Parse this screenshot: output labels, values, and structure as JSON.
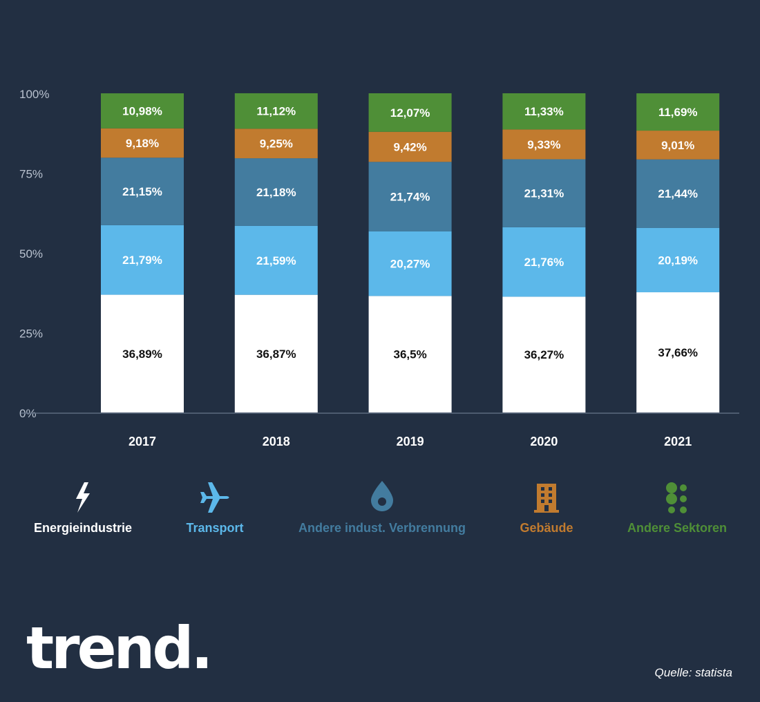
{
  "chart_data": {
    "type": "bar",
    "stacked": true,
    "categories": [
      "2017",
      "2018",
      "2019",
      "2020",
      "2021"
    ],
    "ylim": [
      0,
      100
    ],
    "yticks": [
      "0%",
      "25%",
      "50%",
      "75%",
      "100%"
    ],
    "ytick_values": [
      0,
      25,
      50,
      75,
      100
    ],
    "series": [
      {
        "name": "Energieindustrie",
        "color": "#ffffff",
        "label_color": "#111111",
        "values": [
          36.89,
          36.87,
          36.5,
          36.27,
          37.66
        ],
        "labels": [
          "36,89%",
          "36,87%",
          "36,5%",
          "36,27%",
          "37,66%"
        ]
      },
      {
        "name": "Transport",
        "color": "#5cb8ea",
        "label_color": "#ffffff",
        "values": [
          21.79,
          21.59,
          20.27,
          21.76,
          20.19
        ],
        "labels": [
          "21,79%",
          "21,59%",
          "20,27%",
          "21,76%",
          "20,19%"
        ]
      },
      {
        "name": "Andere indust. Verbrennung",
        "color": "#437c9f",
        "label_color": "#ffffff",
        "values": [
          21.15,
          21.18,
          21.74,
          21.31,
          21.44
        ],
        "labels": [
          "21,15%",
          "21,18%",
          "21,74%",
          "21,31%",
          "21,44%"
        ]
      },
      {
        "name": "Gebäude",
        "color": "#c17b2f",
        "label_color": "#ffffff",
        "values": [
          9.18,
          9.25,
          9.42,
          9.33,
          9.01
        ],
        "labels": [
          "9,18%",
          "9,25%",
          "9,42%",
          "9,33%",
          "9,01%"
        ]
      },
      {
        "name": "Andere Sektoren",
        "color": "#4f8f37",
        "label_color": "#ffffff",
        "values": [
          10.98,
          11.12,
          12.07,
          11.33,
          11.69
        ],
        "labels": [
          "10,98%",
          "11,12%",
          "12,07%",
          "11,33%",
          "11,69%"
        ]
      }
    ]
  },
  "legend": [
    {
      "label": "Energieindustrie",
      "icon": "lightning-icon",
      "color": "#ffffff"
    },
    {
      "label": "Transport",
      "icon": "airplane-icon",
      "color": "#5cb8ea"
    },
    {
      "label": "Andere indust. Verbrennung",
      "icon": "drop-icon",
      "color": "#437c9f"
    },
    {
      "label": "Gebäude",
      "icon": "building-icon",
      "color": "#c17b2f"
    },
    {
      "label": "Andere Sektoren",
      "icon": "dots-icon",
      "color": "#4f8f37"
    }
  ],
  "brand": {
    "logo": "trend."
  },
  "source": {
    "text": "Quelle: statista"
  },
  "colors": {
    "background": "#222f42",
    "axis": "#5c6b80",
    "tick_text": "#b9c2cf",
    "category_text": "#ffffff"
  }
}
